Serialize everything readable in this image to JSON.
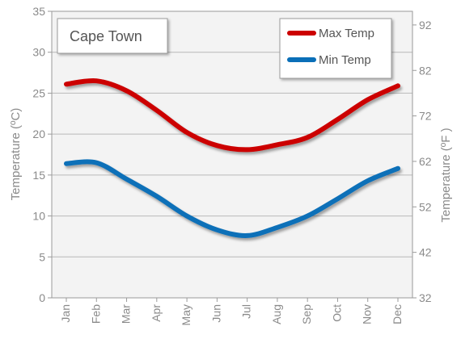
{
  "chart_data": {
    "type": "line",
    "title": "Cape Town",
    "categories": [
      "Jan",
      "Feb",
      "Mar",
      "Apr",
      "May",
      "Jun",
      "Jul",
      "Aug",
      "Sep",
      "Oct",
      "Nov",
      "Dec"
    ],
    "series": [
      {
        "name": "Max Temp",
        "color": "#cc0000",
        "values": [
          26.1,
          26.5,
          25.3,
          22.9,
          20.2,
          18.6,
          18.1,
          18.7,
          19.6,
          21.8,
          24.2,
          25.9
        ]
      },
      {
        "name": "Min Temp",
        "color": "#0a6fb8",
        "values": [
          16.4,
          16.5,
          14.5,
          12.4,
          10.0,
          8.3,
          7.6,
          8.6,
          10.0,
          12.1,
          14.3,
          15.8
        ]
      }
    ],
    "ylabel_left": "Temperature (ºC)",
    "ylabel_right": "Temperature (ºF )",
    "ylim": [
      0,
      35
    ],
    "yticks_left": [
      "0",
      "5",
      "10",
      "15",
      "20",
      "25",
      "30",
      "35"
    ],
    "yticks_right": [
      "32",
      "42",
      "52",
      "62",
      "72",
      "82",
      "92"
    ],
    "grid": true,
    "legend_position": "top-right"
  }
}
